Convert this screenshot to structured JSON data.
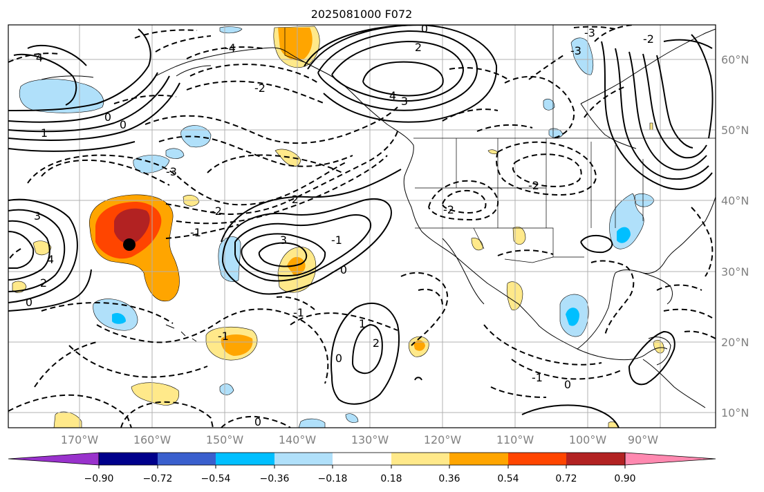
{
  "title": "2025081000 F072",
  "map": {
    "lat_labels": [
      "60°N",
      "50°N",
      "40°N",
      "30°N",
      "20°N",
      "10°N"
    ],
    "lon_labels": [
      "170°W",
      "160°W",
      "150°W",
      "140°W",
      "130°W",
      "120°W",
      "110°W",
      "100°W",
      "90°W"
    ],
    "gridlines": true,
    "contour_labels": [
      "4",
      "-4",
      "-3",
      "-2",
      "0",
      "2",
      "4",
      "3",
      "-3",
      "1",
      "0",
      "-2",
      "-1",
      "0",
      "-2",
      "3",
      "4",
      "2",
      "0",
      "-1",
      "1",
      "2",
      "-1",
      "-1",
      "0",
      "0",
      "0",
      "-1",
      "0",
      "-2",
      "-2",
      "-3",
      "-2",
      "3"
    ]
  },
  "colorbar": {
    "ticks": [
      "−0.90",
      "−0.72",
      "−0.54",
      "−0.36",
      "−0.18",
      "0.18",
      "0.36",
      "0.54",
      "0.72",
      "0.90"
    ],
    "colors": [
      "#9932cc",
      "#00008b",
      "#3a5fcd",
      "#00bfff",
      "#b0e0fa",
      "#ffffff",
      "#ffe98a",
      "#ffa500",
      "#ff4500",
      "#b22222",
      "#ff89b0"
    ]
  }
}
